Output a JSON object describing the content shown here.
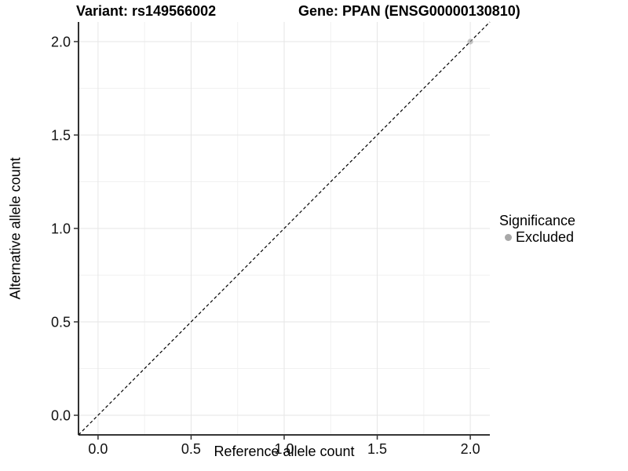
{
  "header": {
    "title_left": "Variant: rs149566002",
    "title_right": "Gene: PPAN (ENSG00000130810)"
  },
  "chart_data": {
    "type": "scatter",
    "xlabel": "Reference allele count",
    "ylabel": "Alternative allele count",
    "xlim": [
      -0.105,
      2.105
    ],
    "ylim": [
      -0.105,
      2.105
    ],
    "x_ticks": [
      0.0,
      0.5,
      1.0,
      1.5,
      2.0
    ],
    "y_ticks": [
      0.0,
      0.5,
      1.0,
      1.5,
      2.0
    ],
    "x_minor_ticks": [
      0.25,
      0.75,
      1.25,
      1.75
    ],
    "y_minor_ticks": [
      0.25,
      0.75,
      1.25,
      1.75
    ],
    "tick_label_decimals": 1,
    "grid": true,
    "identity_line": {
      "style": "dashed",
      "color": "#000000"
    },
    "series": [
      {
        "name": "Excluded",
        "color": "#A8A8A8",
        "opacity": 0.65,
        "points": [
          {
            "x": 2.0,
            "y": 2.0
          }
        ]
      }
    ],
    "legend": {
      "title": "Significance",
      "position": "right",
      "entries": [
        {
          "label": "Excluded",
          "color": "#A8A8A8"
        }
      ]
    }
  },
  "colors": {
    "background": "#FFFFFF",
    "grid_major": "#E6E6E6",
    "grid_minor": "#F1F1F1",
    "axis_line": "#1A1A1A",
    "tick_mark": "#333333",
    "tick_text": "#111111"
  }
}
